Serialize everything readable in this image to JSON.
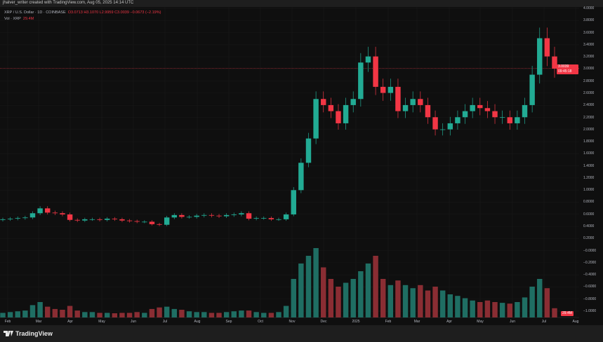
{
  "credit": "jhalver_writer created with TradingView.com, Aug 05, 2025 14:14 UTC",
  "legend": {
    "symbol": "XRP / U.S. Dollar · 1D · COINBASE",
    "open": "O3.0713",
    "high": "H3.1070",
    "low": "L2.9959",
    "close": "C3.0039",
    "change": "−0.0673 (−2.19%)",
    "vol_label": "Vol · XRP",
    "vol_value": "29.4M"
  },
  "price_tag": {
    "price": "3.0039",
    "countdown": "09:45:18"
  },
  "volume_tag": "29.4M",
  "brand": "TradingView",
  "colors": {
    "up": "#22ab94",
    "down": "#f23645",
    "vol_up": "#1f6e63",
    "vol_down": "#8a2d33",
    "background": "#0f0f0f"
  },
  "chart_data": {
    "type": "candlestick",
    "interval": "1D (shown as weekly approximation)",
    "y_ticks": [
      "4.0000",
      "3.8000",
      "3.6000",
      "3.4000",
      "3.2000",
      "3.0000",
      "2.8000",
      "2.6000",
      "2.4000",
      "2.2000",
      "2.0000",
      "1.8000",
      "1.6000",
      "1.4000",
      "1.2000",
      "1.0000",
      "0.8000",
      "0.6000",
      "0.4000",
      "0.2000",
      "−0.0000",
      "−0.2000",
      "−0.4000",
      "−0.6000",
      "−0.8000",
      "−1.0000"
    ],
    "x_ticks": [
      "Feb",
      "Mar",
      "Apr",
      "May",
      "Jun",
      "Jul",
      "Aug",
      "Sep",
      "Oct",
      "Nov",
      "Dec",
      "2025",
      "Feb",
      "Mar",
      "Apr",
      "May",
      "Jun",
      "Jul",
      "Aug"
    ],
    "ylim": [
      -1.0,
      4.0
    ],
    "current_price": 3.0039,
    "weekly_closes": [
      0.52,
      0.53,
      0.54,
      0.55,
      0.62,
      0.7,
      0.63,
      0.62,
      0.6,
      0.51,
      0.5,
      0.52,
      0.52,
      0.51,
      0.53,
      0.52,
      0.5,
      0.49,
      0.48,
      0.48,
      0.44,
      0.43,
      0.55,
      0.59,
      0.56,
      0.56,
      0.58,
      0.59,
      0.58,
      0.57,
      0.59,
      0.6,
      0.62,
      0.53,
      0.54,
      0.54,
      0.52,
      0.52,
      0.6,
      1.0,
      1.45,
      1.85,
      2.5,
      2.4,
      2.3,
      2.1,
      2.4,
      2.5,
      3.1,
      3.2,
      2.7,
      2.6,
      2.7,
      2.3,
      2.4,
      2.5,
      2.4,
      2.2,
      2.0,
      2.0,
      2.1,
      2.2,
      2.3,
      2.4,
      2.35,
      2.3,
      2.2,
      2.2,
      2.1,
      2.2,
      2.4,
      2.9,
      3.5,
      3.2,
      3.0
    ],
    "weekly_volume_m": [
      60,
      70,
      80,
      90,
      160,
      200,
      140,
      110,
      100,
      150,
      90,
      70,
      70,
      60,
      60,
      55,
      60,
      60,
      70,
      60,
      110,
      130,
      140,
      110,
      100,
      80,
      70,
      70,
      60,
      60,
      70,
      80,
      90,
      90,
      70,
      60,
      60,
      70,
      150,
      500,
      700,
      800,
      900,
      650,
      500,
      400,
      450,
      500,
      600,
      700,
      800,
      500,
      420,
      480,
      420,
      380,
      420,
      350,
      400,
      350,
      300,
      280,
      250,
      220,
      200,
      220,
      200,
      190,
      180,
      200,
      260,
      400,
      500,
      380,
      120
    ]
  }
}
